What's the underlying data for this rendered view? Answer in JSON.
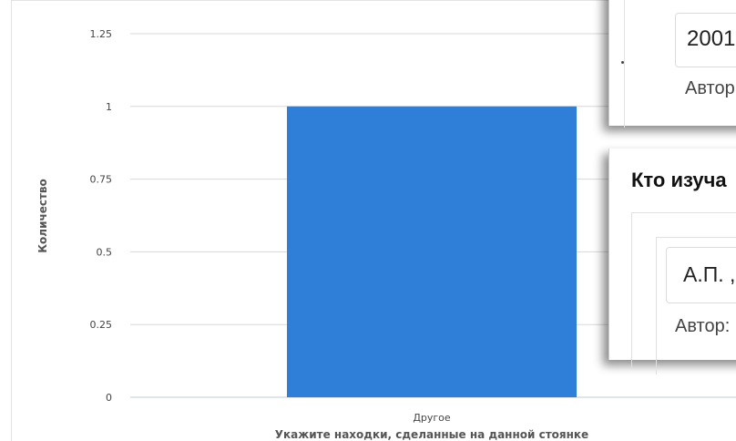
{
  "chart_data": {
    "type": "bar",
    "categories": [
      "Другое"
    ],
    "values": [
      1
    ],
    "title": "",
    "xlabel": "Укажите находки, сделанные на данной стоянке",
    "ylabel": "Количество",
    "ylim": [
      0,
      1.25
    ],
    "yticks": [
      "0",
      "0.25",
      "0.5",
      "0.75",
      "1",
      "1.25"
    ],
    "grid": true,
    "bar_color": "#2f7ed8",
    "grid_color": "#d8d8d8"
  },
  "panels": {
    "top": {
      "value": "2001",
      "author_label": "Автор:"
    },
    "bottom": {
      "heading": "Кто изуча",
      "value": "А.П. ,",
      "author_label": "Автор:"
    }
  }
}
